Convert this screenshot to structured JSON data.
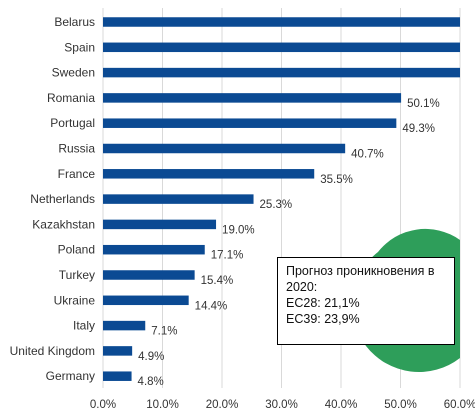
{
  "chart_data": {
    "type": "bar",
    "orientation": "horizontal",
    "categories": [
      "Belarus",
      "Spain",
      "Sweden",
      "Romania",
      "Portugal",
      "Russia",
      "France",
      "Netherlands",
      "Kazakhstan",
      "Poland",
      "Turkey",
      "Ukraine",
      "Italy",
      "United Kingdom",
      "Germany"
    ],
    "values": [
      62.0,
      62.0,
      62.0,
      50.1,
      49.3,
      40.7,
      35.5,
      25.3,
      19.0,
      17.1,
      15.4,
      14.4,
      7.1,
      4.9,
      4.8
    ],
    "value_labels": [
      "",
      "",
      "",
      "50.1%",
      "49.3%",
      "40.7%",
      "35.5%",
      "25.3%",
      "19.0%",
      "17.1%",
      "15.4%",
      "14.4%",
      "7.1%",
      "4.9%",
      "4.8%"
    ],
    "xlim": [
      0,
      60
    ],
    "x_ticks": [
      "0.0%",
      "10.0%",
      "20.0%",
      "30.0%",
      "40.0%",
      "50.0%",
      "60.0%"
    ],
    "grid": true,
    "bar_color": "#0b4a93",
    "grid_color": "#d9d9d9",
    "title": "",
    "xlabel": "",
    "ylabel": ""
  },
  "note": {
    "line1": "Прогноз проникновения в 2020:",
    "line2": "ЕС28: 21,1%",
    "line3": "ЕС39: 23,9%"
  },
  "decoration": {
    "circle_color": "#2e9e5a"
  }
}
